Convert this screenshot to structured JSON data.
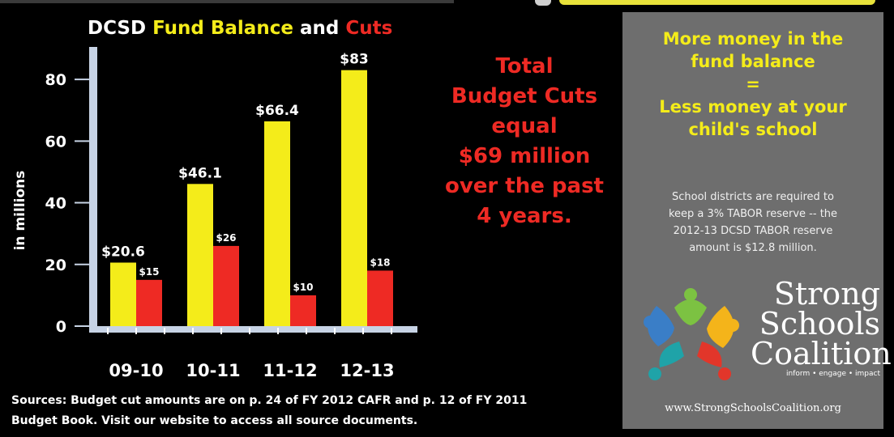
{
  "chart_data": {
    "type": "bar",
    "title_parts": [
      "DCSD",
      "Fund Balance",
      "and",
      "Cuts"
    ],
    "ylabel": "in millions",
    "categories": [
      "09-10",
      "10-11",
      "11-12",
      "12-13"
    ],
    "ylim": [
      0,
      90
    ],
    "yticks": [
      0,
      20,
      40,
      60,
      80
    ],
    "series": [
      {
        "values": [
          20.6,
          46.1,
          66.4,
          83
        ],
        "labels": [
          "$20.6",
          "$46.1",
          "$66.4",
          "$83"
        ],
        "color": "#f4ec1a"
      },
      {
        "values": [
          15,
          26,
          10,
          18
        ],
        "labels": [
          "$15",
          "$26",
          "$10",
          "$18"
        ],
        "color": "#ee2a24"
      }
    ]
  },
  "cuts_message": [
    "Total",
    "Budget Cuts",
    "equal",
    "$69 million",
    "over the past",
    "4 years."
  ],
  "sources": [
    "Sources:  Budget cut amounts are on p. 24 of FY 2012 CAFR and p. 12 of FY 2011",
    "Budget Book. Visit our website to access all source documents."
  ],
  "panel": {
    "headline": [
      "More money in the",
      "fund balance",
      "=",
      "Less money at your",
      "child's school"
    ],
    "note": [
      "School districts are required to",
      "keep a 3% TABOR reserve -- the",
      "2012-13 DCSD TABOR reserve",
      "amount is $12.8 million."
    ],
    "logo_words": [
      "Strong",
      "Schools",
      "Coalition"
    ],
    "logo_tagline": "inform • engage • impact",
    "url": "www.StrongSchoolsCoalition.org"
  },
  "colors": {
    "fund": "#f4ec1a",
    "cuts": "#ee2a24",
    "axis": "#c7d3e5",
    "panel": "#6e6e6e"
  },
  "icons": [
    "figures-logo-icon"
  ]
}
